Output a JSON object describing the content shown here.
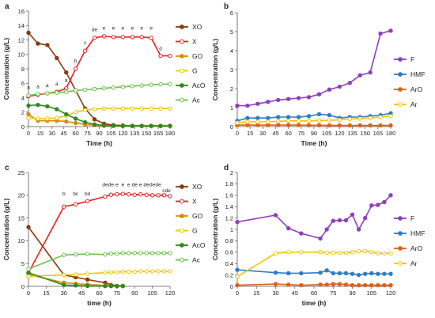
{
  "chart_data": [
    {
      "panel": "a",
      "type": "line",
      "xlabel": "Time (h)",
      "ylabel": "Concentration (g/L)",
      "xlim": [
        0,
        180
      ],
      "ylim": [
        0,
        16
      ],
      "xticks": [
        0,
        15,
        30,
        45,
        60,
        75,
        90,
        105,
        120,
        135,
        150,
        165,
        180
      ],
      "yticks": [
        0,
        2,
        4,
        6,
        8,
        10,
        12,
        14,
        16
      ],
      "grid": false,
      "legend": "right",
      "series": [
        {
          "name": "XO",
          "color": "#8b3a0f",
          "marker": "filled",
          "x": [
            0,
            12,
            24,
            36,
            48,
            60,
            72,
            84,
            96,
            108,
            120,
            132,
            144,
            156,
            168,
            180
          ],
          "y": [
            13.0,
            11.5,
            11.3,
            9.5,
            7.5,
            5.0,
            2.5,
            1.0,
            0.4,
            0.2,
            0.15,
            0.1,
            0.1,
            0.1,
            0.1,
            0.1
          ]
        },
        {
          "name": "X",
          "color": "#e8201e",
          "marker": "open",
          "x": [
            0,
            12,
            24,
            36,
            48,
            60,
            72,
            84,
            96,
            108,
            120,
            132,
            144,
            156,
            168,
            180
          ],
          "y": [
            4.2,
            4.4,
            4.6,
            4.8,
            5.3,
            8.0,
            10.5,
            12.3,
            12.5,
            12.4,
            12.4,
            12.4,
            12.4,
            12.3,
            9.8,
            9.8
          ]
        },
        {
          "name": "GO",
          "color": "#d98c00",
          "marker": "filled",
          "x": [
            0,
            12,
            24,
            36,
            48,
            60,
            72,
            84,
            96,
            108,
            120,
            132,
            144,
            156,
            168,
            180
          ],
          "y": [
            1.7,
            0.8,
            0.8,
            0.8,
            0.7,
            0.5,
            0.3,
            0.2,
            0.1,
            0.1,
            0.05,
            0.05,
            0.05,
            0.05,
            0.05,
            0.05
          ]
        },
        {
          "name": "G",
          "color": "#f5c400",
          "marker": "open",
          "x": [
            0,
            12,
            24,
            36,
            48,
            60,
            72,
            84,
            96,
            108,
            120,
            132,
            144,
            156,
            168,
            180
          ],
          "y": [
            1.2,
            1.1,
            1.1,
            1.2,
            1.5,
            2.0,
            2.3,
            2.4,
            2.5,
            2.5,
            2.5,
            2.5,
            2.5,
            2.5,
            2.5,
            2.5
          ]
        },
        {
          "name": "AcO",
          "color": "#2e8b1f",
          "marker": "filled",
          "x": [
            0,
            12,
            24,
            36,
            48,
            60,
            72,
            84,
            96,
            108,
            120,
            132,
            144,
            156,
            168,
            180
          ],
          "y": [
            2.9,
            3.0,
            2.8,
            2.4,
            1.7,
            1.1,
            0.6,
            0.3,
            0.15,
            0.1,
            0.1,
            0.1,
            0.1,
            0.1,
            0.1,
            0.1
          ]
        },
        {
          "name": "Ac",
          "color": "#6cc24a",
          "marker": "open",
          "x": [
            0,
            12,
            24,
            36,
            48,
            60,
            72,
            84,
            96,
            108,
            120,
            132,
            144,
            156,
            168,
            180
          ],
          "y": [
            4.3,
            4.5,
            4.6,
            4.7,
            4.8,
            5.0,
            5.1,
            5.2,
            5.3,
            5.4,
            5.5,
            5.6,
            5.7,
            5.8,
            5.85,
            5.9
          ]
        }
      ],
      "annotations": [
        {
          "text": "a",
          "x": 0,
          "y": 5.2
        },
        {
          "text": "a",
          "x": 12,
          "y": 5.3
        },
        {
          "text": "a",
          "x": 24,
          "y": 5.5
        },
        {
          "text": "a",
          "x": 36,
          "y": 5.7
        },
        {
          "text": "a",
          "x": 48,
          "y": 6.2
        },
        {
          "text": "b",
          "x": 60,
          "y": 8.9
        },
        {
          "text": "c",
          "x": 72,
          "y": 11.4
        },
        {
          "text": "de",
          "x": 84,
          "y": 13.2
        },
        {
          "text": "e",
          "x": 96,
          "y": 13.4
        },
        {
          "text": "e",
          "x": 108,
          "y": 13.4
        },
        {
          "text": "e",
          "x": 120,
          "y": 13.4
        },
        {
          "text": "e",
          "x": 132,
          "y": 13.4
        },
        {
          "text": "e",
          "x": 144,
          "y": 13.4
        },
        {
          "text": "e",
          "x": 156,
          "y": 13.4
        },
        {
          "text": "d",
          "x": 168,
          "y": 10.6
        }
      ]
    },
    {
      "panel": "b",
      "type": "line",
      "xlabel": "Time (h)",
      "ylabel": "Concentration (g/L)",
      "xlim": [
        0,
        180
      ],
      "ylim": [
        0,
        6
      ],
      "xticks": [
        0,
        15,
        30,
        45,
        60,
        75,
        90,
        105,
        120,
        135,
        150,
        165,
        180
      ],
      "yticks": [
        0,
        1,
        2,
        3,
        4,
        5,
        6
      ],
      "grid": false,
      "legend": "right",
      "series": [
        {
          "name": "F",
          "color": "#8e3fbd",
          "marker": "filled",
          "x": [
            0,
            12,
            24,
            36,
            48,
            60,
            72,
            84,
            96,
            108,
            120,
            132,
            144,
            156,
            168,
            180
          ],
          "y": [
            1.1,
            1.1,
            1.2,
            1.3,
            1.4,
            1.45,
            1.5,
            1.55,
            1.7,
            1.95,
            2.1,
            2.3,
            2.7,
            2.85,
            4.9,
            5.05
          ]
        },
        {
          "name": "HMF",
          "color": "#2d7dc8",
          "marker": "filled",
          "x": [
            0,
            12,
            24,
            36,
            48,
            60,
            72,
            84,
            96,
            108,
            120,
            132,
            144,
            156,
            168,
            180
          ],
          "y": [
            0.3,
            0.45,
            0.45,
            0.45,
            0.5,
            0.5,
            0.5,
            0.55,
            0.65,
            0.6,
            0.45,
            0.5,
            0.5,
            0.55,
            0.6,
            0.7
          ]
        },
        {
          "name": "ArO",
          "color": "#e0601a",
          "marker": "filled",
          "x": [
            0,
            12,
            24,
            36,
            48,
            60,
            72,
            84,
            96,
            108,
            120,
            132,
            144,
            156,
            168,
            180
          ],
          "y": [
            0.08,
            0.08,
            0.08,
            0.08,
            0.08,
            0.08,
            0.08,
            0.07,
            0.07,
            0.06,
            0.06,
            0.06,
            0.06,
            0.06,
            0.06,
            0.06
          ]
        },
        {
          "name": "Ar",
          "color": "#f5c400",
          "marker": "open",
          "x": [
            0,
            12,
            24,
            36,
            48,
            60,
            72,
            84,
            96,
            108,
            120,
            132,
            144,
            156,
            168,
            180
          ],
          "y": [
            0.2,
            0.25,
            0.25,
            0.25,
            0.28,
            0.3,
            0.3,
            0.3,
            0.32,
            0.33,
            0.35,
            0.4,
            0.42,
            0.45,
            0.5,
            0.55
          ]
        }
      ]
    },
    {
      "panel": "c",
      "type": "line",
      "xlabel": "time (h)",
      "ylabel": "Concentration (g/L)",
      "xlim": [
        0,
        120
      ],
      "ylim": [
        0,
        25
      ],
      "xticks": [
        0,
        15,
        30,
        45,
        60,
        75,
        90,
        105,
        120
      ],
      "yticks": [
        0,
        5,
        10,
        15,
        20,
        25
      ],
      "grid": false,
      "legend": "right",
      "series": [
        {
          "name": "XO",
          "color": "#8b3a0f",
          "marker": "filled",
          "x": [
            0,
            30,
            40,
            50,
            65,
            70,
            80
          ],
          "y": [
            13.0,
            2.5,
            2.0,
            1.5,
            0.8,
            0.3,
            0.1
          ]
        },
        {
          "name": "X",
          "color": "#e8201e",
          "marker": "open",
          "x": [
            0,
            30,
            40,
            50,
            65,
            70,
            75,
            80,
            85,
            90,
            95,
            100,
            105,
            110,
            115,
            120
          ],
          "y": [
            3.0,
            17.5,
            18.0,
            18.7,
            19.7,
            20.1,
            20.2,
            20.3,
            20.2,
            20.1,
            20.2,
            20.1,
            20.0,
            20.0,
            20.0,
            19.8
          ]
        },
        {
          "name": "GO",
          "color": "#d98c00",
          "marker": "filled",
          "x": [
            0,
            30,
            40,
            50,
            65,
            70,
            75,
            80
          ],
          "y": [
            2.6,
            0.8,
            0.6,
            0.4,
            0.2,
            0.1,
            0.1,
            0.05
          ]
        },
        {
          "name": "G",
          "color": "#f5c400",
          "marker": "open",
          "x": [
            0,
            30,
            40,
            50,
            65,
            70,
            75,
            80,
            85,
            90,
            95,
            100,
            105,
            110,
            115,
            120
          ],
          "y": [
            2.2,
            2.5,
            2.6,
            2.8,
            3.0,
            3.1,
            3.1,
            3.2,
            3.2,
            3.2,
            3.3,
            3.3,
            3.3,
            3.3,
            3.3,
            3.3
          ]
        },
        {
          "name": "AcO",
          "color": "#2e8b1f",
          "marker": "filled",
          "x": [
            0,
            30,
            40,
            50,
            65,
            70,
            75,
            80
          ],
          "y": [
            3.0,
            0.3,
            0.2,
            0.1,
            0.05,
            0.05,
            0.05,
            0.05
          ]
        },
        {
          "name": "Ac",
          "color": "#6cc24a",
          "marker": "open",
          "x": [
            0,
            30,
            40,
            50,
            65,
            70,
            75,
            80,
            85,
            90,
            95,
            100,
            105,
            110,
            115,
            120
          ],
          "y": [
            3.8,
            6.9,
            7.0,
            7.1,
            7.0,
            7.2,
            7.2,
            7.3,
            7.3,
            7.3,
            7.3,
            7.3,
            7.3,
            7.3,
            7.3,
            7.3
          ]
        }
      ],
      "annotations": [
        {
          "text": "b",
          "x": 30,
          "y": 20.0
        },
        {
          "text": "bc",
          "x": 40,
          "y": 20.0
        },
        {
          "text": "bd",
          "x": 50,
          "y": 20.0
        },
        {
          "text": "de",
          "x": 65,
          "y": 22.0
        },
        {
          "text": "de",
          "x": 70,
          "y": 22.0
        },
        {
          "text": "e",
          "x": 75,
          "y": 22.0
        },
        {
          "text": "e",
          "x": 80,
          "y": 22.0
        },
        {
          "text": "e",
          "x": 85,
          "y": 22.0
        },
        {
          "text": "de",
          "x": 90,
          "y": 22.0
        },
        {
          "text": "e",
          "x": 95,
          "y": 22.0
        },
        {
          "text": "de",
          "x": 100,
          "y": 22.0
        },
        {
          "text": "de",
          "x": 105,
          "y": 22.0
        },
        {
          "text": "de",
          "x": 110,
          "y": 22.0
        },
        {
          "text": "cde",
          "x": 117,
          "y": 20.7
        }
      ]
    },
    {
      "panel": "d",
      "type": "line",
      "xlabel": "time (h)",
      "ylabel": "Concentration (g/L)",
      "xlim": [
        0,
        120
      ],
      "ylim": [
        0,
        2
      ],
      "xticks": [
        0,
        15,
        30,
        45,
        60,
        75,
        90,
        105,
        120
      ],
      "yticks": [
        "0",
        "0.2",
        "0.4",
        "0.6",
        "0.8",
        "1",
        "1.2",
        "1.4",
        "1.6",
        "1.8",
        "2"
      ],
      "grid": false,
      "legend": "right",
      "series": [
        {
          "name": "F",
          "color": "#8e3fbd",
          "marker": "filled",
          "x": [
            0,
            30,
            40,
            50,
            65,
            70,
            75,
            80,
            85,
            90,
            95,
            100,
            105,
            110,
            115,
            120
          ],
          "y": [
            1.13,
            1.25,
            1.02,
            0.93,
            0.84,
            1.0,
            1.15,
            1.16,
            1.16,
            1.26,
            1.0,
            1.2,
            1.42,
            1.43,
            1.48,
            1.6
          ]
        },
        {
          "name": "HMF",
          "color": "#2d7dc8",
          "marker": "filled",
          "x": [
            0,
            30,
            40,
            50,
            65,
            70,
            75,
            80,
            85,
            90,
            95,
            100,
            105,
            110,
            115,
            120
          ],
          "y": [
            0.29,
            0.24,
            0.23,
            0.23,
            0.24,
            0.28,
            0.23,
            0.23,
            0.23,
            0.22,
            0.2,
            0.22,
            0.23,
            0.22,
            0.22,
            0.22
          ]
        },
        {
          "name": "ArO",
          "color": "#e0601a",
          "marker": "filled",
          "x": [
            0,
            30,
            40,
            50,
            65,
            70,
            75,
            80,
            85,
            90,
            95,
            100,
            105,
            110,
            115,
            120
          ],
          "y": [
            0.02,
            0.04,
            0.03,
            0.02,
            0.03,
            0.03,
            0.04,
            0.04,
            0.03,
            0.02,
            0.02,
            0.02,
            0.02,
            0.02,
            0.02,
            0.02
          ]
        },
        {
          "name": "Ar",
          "color": "#f5c400",
          "marker": "open",
          "x": [
            0,
            30,
            40,
            50,
            65,
            70,
            75,
            80,
            85,
            90,
            95,
            100,
            105,
            110,
            115,
            120
          ],
          "y": [
            0.17,
            0.58,
            0.6,
            0.6,
            0.6,
            0.59,
            0.59,
            0.59,
            0.59,
            0.6,
            0.62,
            0.62,
            0.6,
            0.58,
            0.58,
            0.58
          ]
        }
      ]
    }
  ]
}
